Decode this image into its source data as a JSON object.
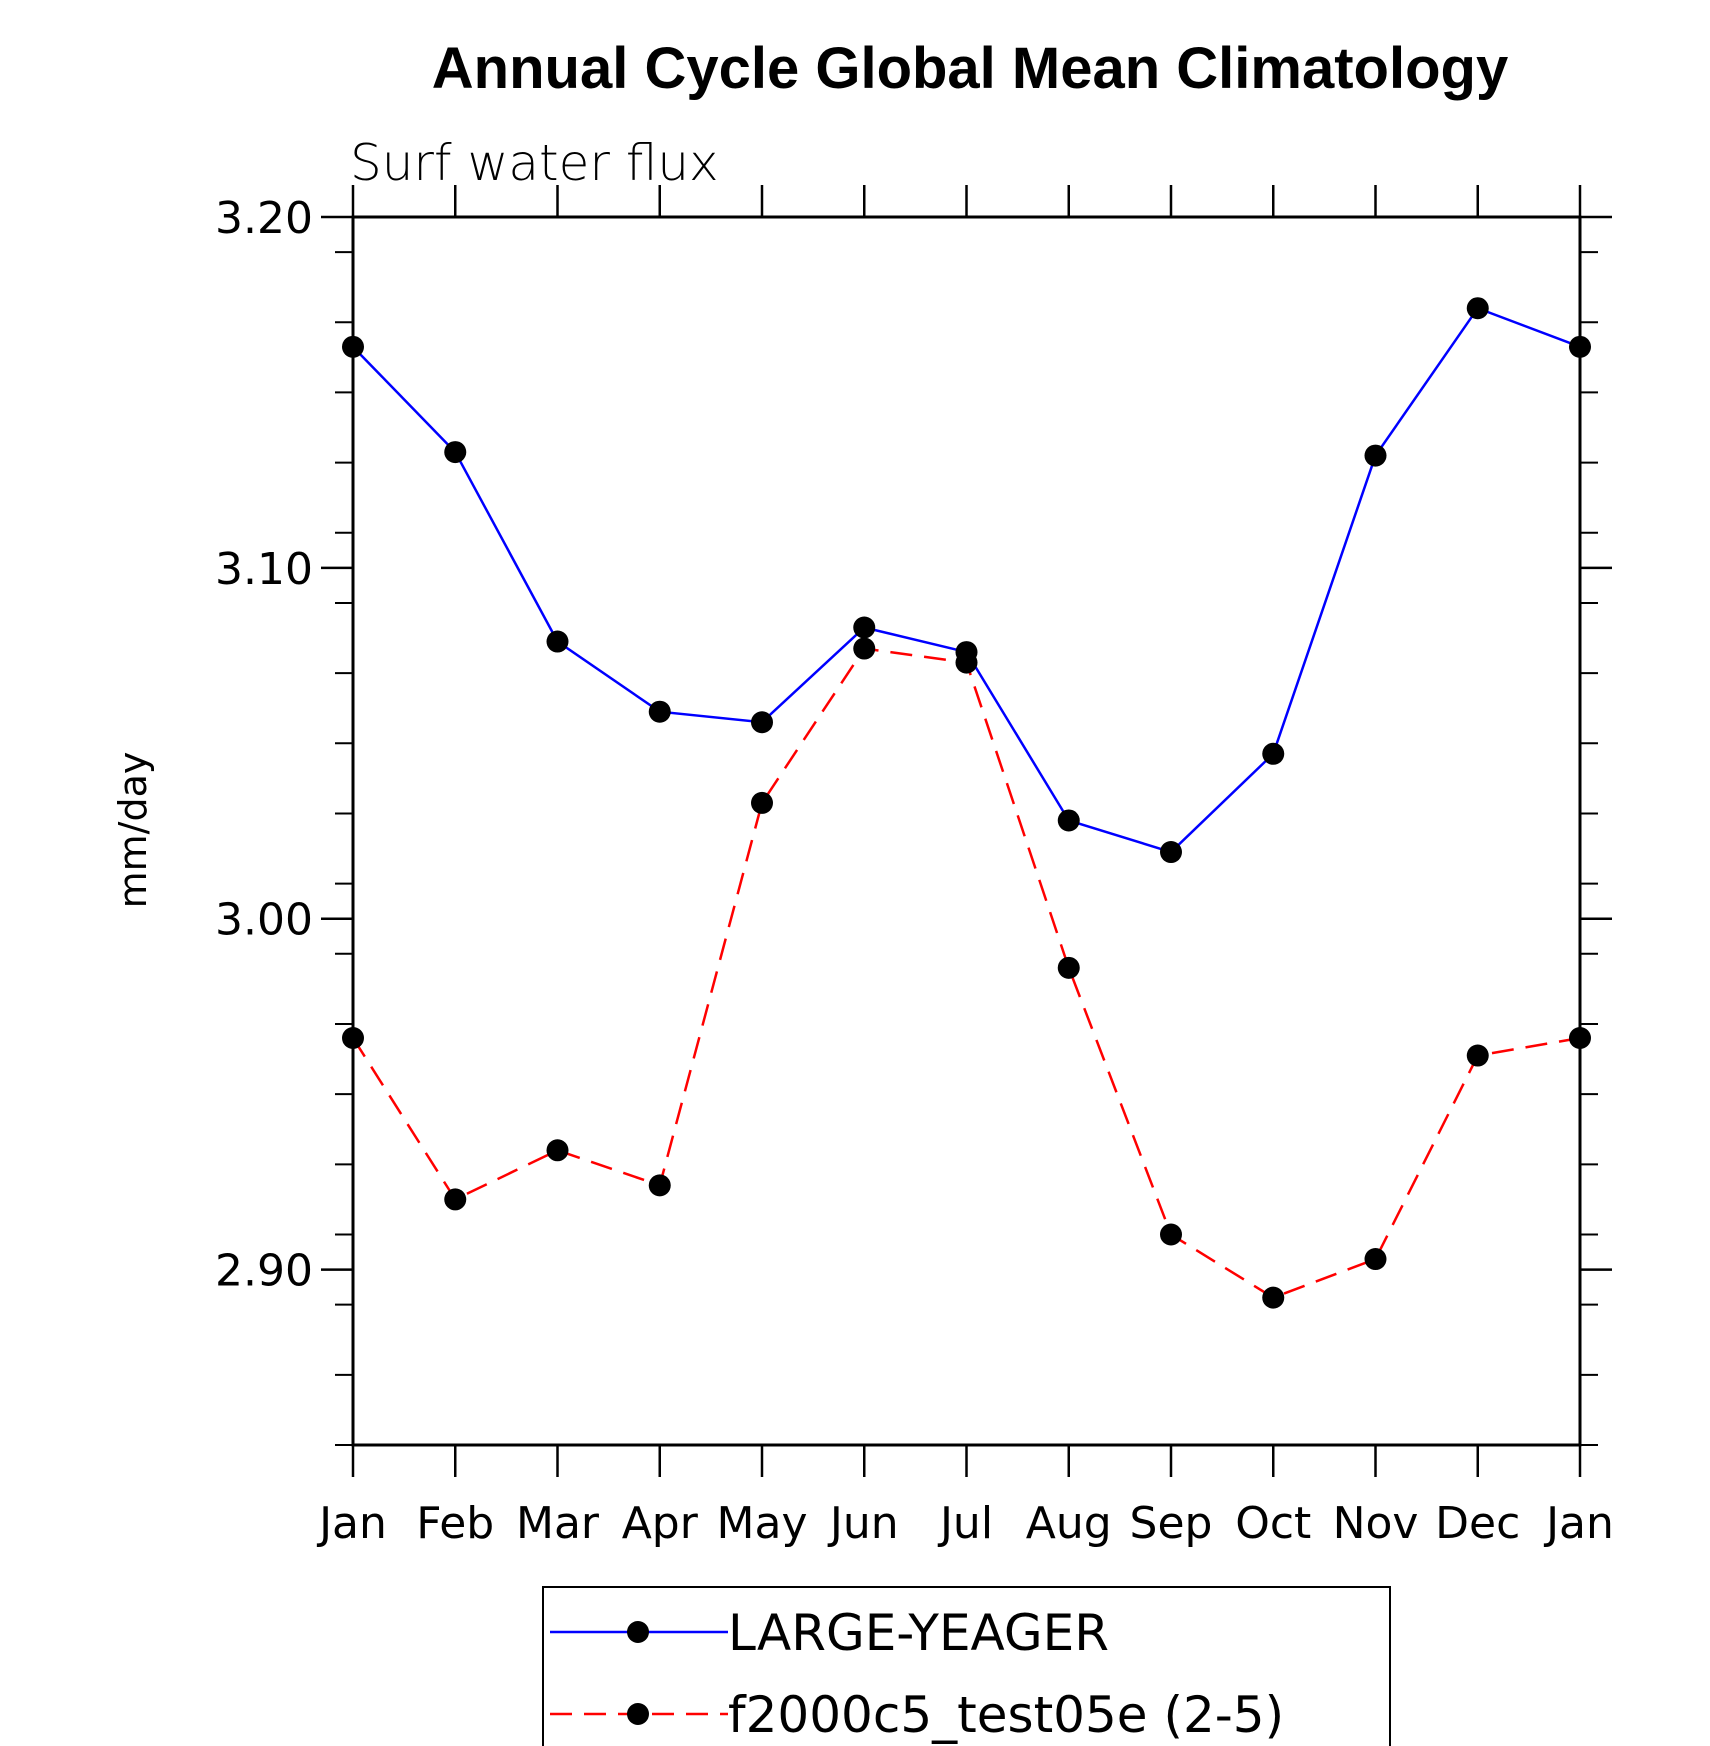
{
  "chart_data": {
    "type": "line",
    "title": "Annual Cycle Global Mean Climatology",
    "subtitle": "Surf water flux",
    "xlabel": "",
    "ylabel": "mm/day",
    "categories": [
      "Jan",
      "Feb",
      "Mar",
      "Apr",
      "May",
      "Jun",
      "Jul",
      "Aug",
      "Sep",
      "Oct",
      "Nov",
      "Dec",
      "Jan"
    ],
    "ylim": [
      2.85,
      3.2
    ],
    "y_major_ticks": [
      2.9,
      3.0,
      3.1,
      3.2
    ],
    "y_major_tick_labels": [
      "2.90",
      "3.00",
      "3.10",
      "3.20"
    ],
    "y_minor_step": 0.02,
    "grid": false,
    "legend_position": "bottom-center",
    "series": [
      {
        "name": "LARGE-YEAGER",
        "color": "#0000ff",
        "line_style": "solid",
        "marker": "filled-circle",
        "values": [
          3.163,
          3.133,
          3.079,
          3.059,
          3.056,
          3.083,
          3.076,
          3.028,
          3.019,
          3.047,
          3.132,
          3.174,
          3.163
        ]
      },
      {
        "name": "f2000c5_test05e (2-5)",
        "color": "#ff0000",
        "line_style": "dashed",
        "marker": "filled-circle",
        "values": [
          2.966,
          2.92,
          2.934,
          2.924,
          3.033,
          3.077,
          3.073,
          2.986,
          2.91,
          2.892,
          2.903,
          2.961,
          2.966
        ]
      }
    ]
  }
}
